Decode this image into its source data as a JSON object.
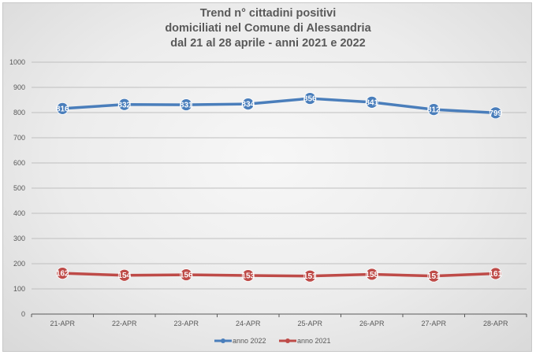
{
  "chart_data": {
    "type": "line",
    "title_lines": [
      "Trend n° cittadini positivi",
      "domiciliati nel Comune di Alessandria",
      "dal 21 al 28 aprile - anni 2021 e 2022"
    ],
    "categories": [
      "21-APR",
      "22-APR",
      "23-APR",
      "24-APR",
      "25-APR",
      "26-APR",
      "27-APR",
      "28-APR"
    ],
    "yticks": [
      "0",
      "100",
      "200",
      "300",
      "400",
      "500",
      "600",
      "700",
      "800",
      "900",
      "1000"
    ],
    "ylim": [
      0,
      1000
    ],
    "grid": true,
    "legend_position": "bottom",
    "series": [
      {
        "name": "anno 2022",
        "color": "#4a7ebb",
        "values": [
          816,
          832,
          831,
          834,
          856,
          841,
          812,
          799
        ],
        "labels": [
          "816",
          "832",
          "831",
          "834",
          "856",
          "841",
          "812",
          "799"
        ]
      },
      {
        "name": "anno 2021",
        "color": "#be4b48",
        "values": [
          162,
          154,
          156,
          153,
          151,
          158,
          151,
          161
        ],
        "labels": [
          "162",
          "154",
          "156",
          "153",
          "151",
          "158",
          "151",
          "161"
        ]
      }
    ]
  }
}
